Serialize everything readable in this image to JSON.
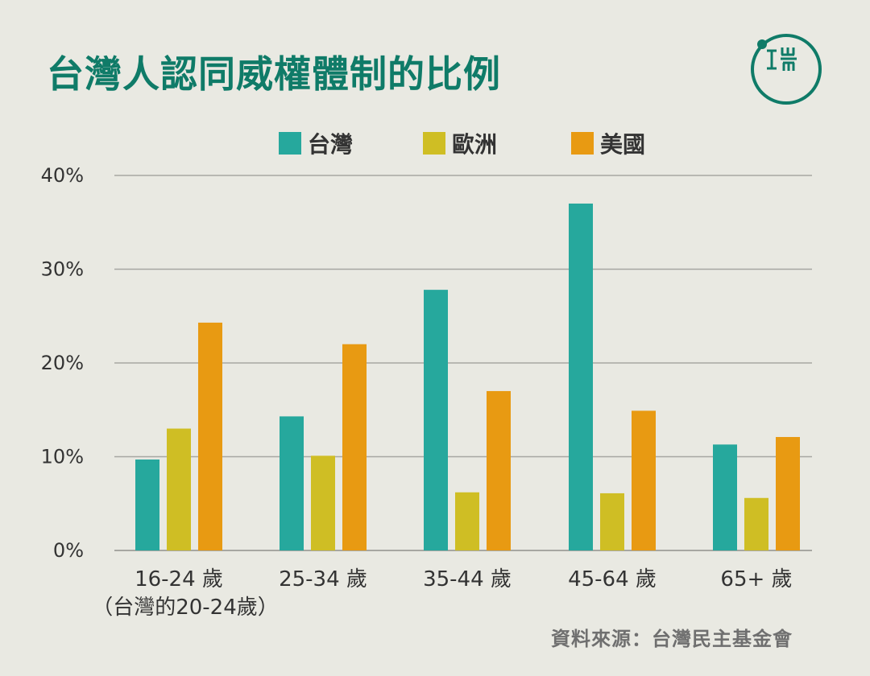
{
  "title": "台灣人認同威權體制的比例",
  "source": "資料來源：台灣民主基金會",
  "logo": {
    "icon_name": "theinitium-logo-icon",
    "color": "#0f7b68"
  },
  "colors": {
    "background": "#e9e9e2",
    "title": "#0f7b68",
    "grid": "#a7a7a2",
    "text": "#333333",
    "taiwan": "#26a89d",
    "europe": "#cfbe24",
    "usa": "#e89a12"
  },
  "chart_data": {
    "type": "bar",
    "title": "台灣人認同威權體制的比例",
    "categories": [
      "16-24 歲",
      "25-34 歲",
      "35-44 歲",
      "45-64 歲",
      "65+ 歲"
    ],
    "category_notes": {
      "16-24 歲": "（台灣的20-24歲）"
    },
    "series": [
      {
        "name": "台灣",
        "color": "#26a89d",
        "values": [
          9.7,
          14.3,
          27.8,
          37.0,
          11.3
        ]
      },
      {
        "name": "歐洲",
        "color": "#cfbe24",
        "values": [
          13.0,
          10.1,
          6.2,
          6.1,
          5.6
        ]
      },
      {
        "name": "美國",
        "color": "#e89a12",
        "values": [
          24.3,
          22.0,
          17.0,
          14.9,
          12.1
        ]
      }
    ],
    "y_ticks": [
      0,
      10,
      20,
      30,
      40
    ],
    "y_tick_labels": [
      "0%",
      "10%",
      "20%",
      "30%",
      "40%"
    ],
    "ylim": [
      0,
      40
    ],
    "grid": true,
    "legend_position": "top-center",
    "xlabel": "",
    "ylabel": ""
  }
}
